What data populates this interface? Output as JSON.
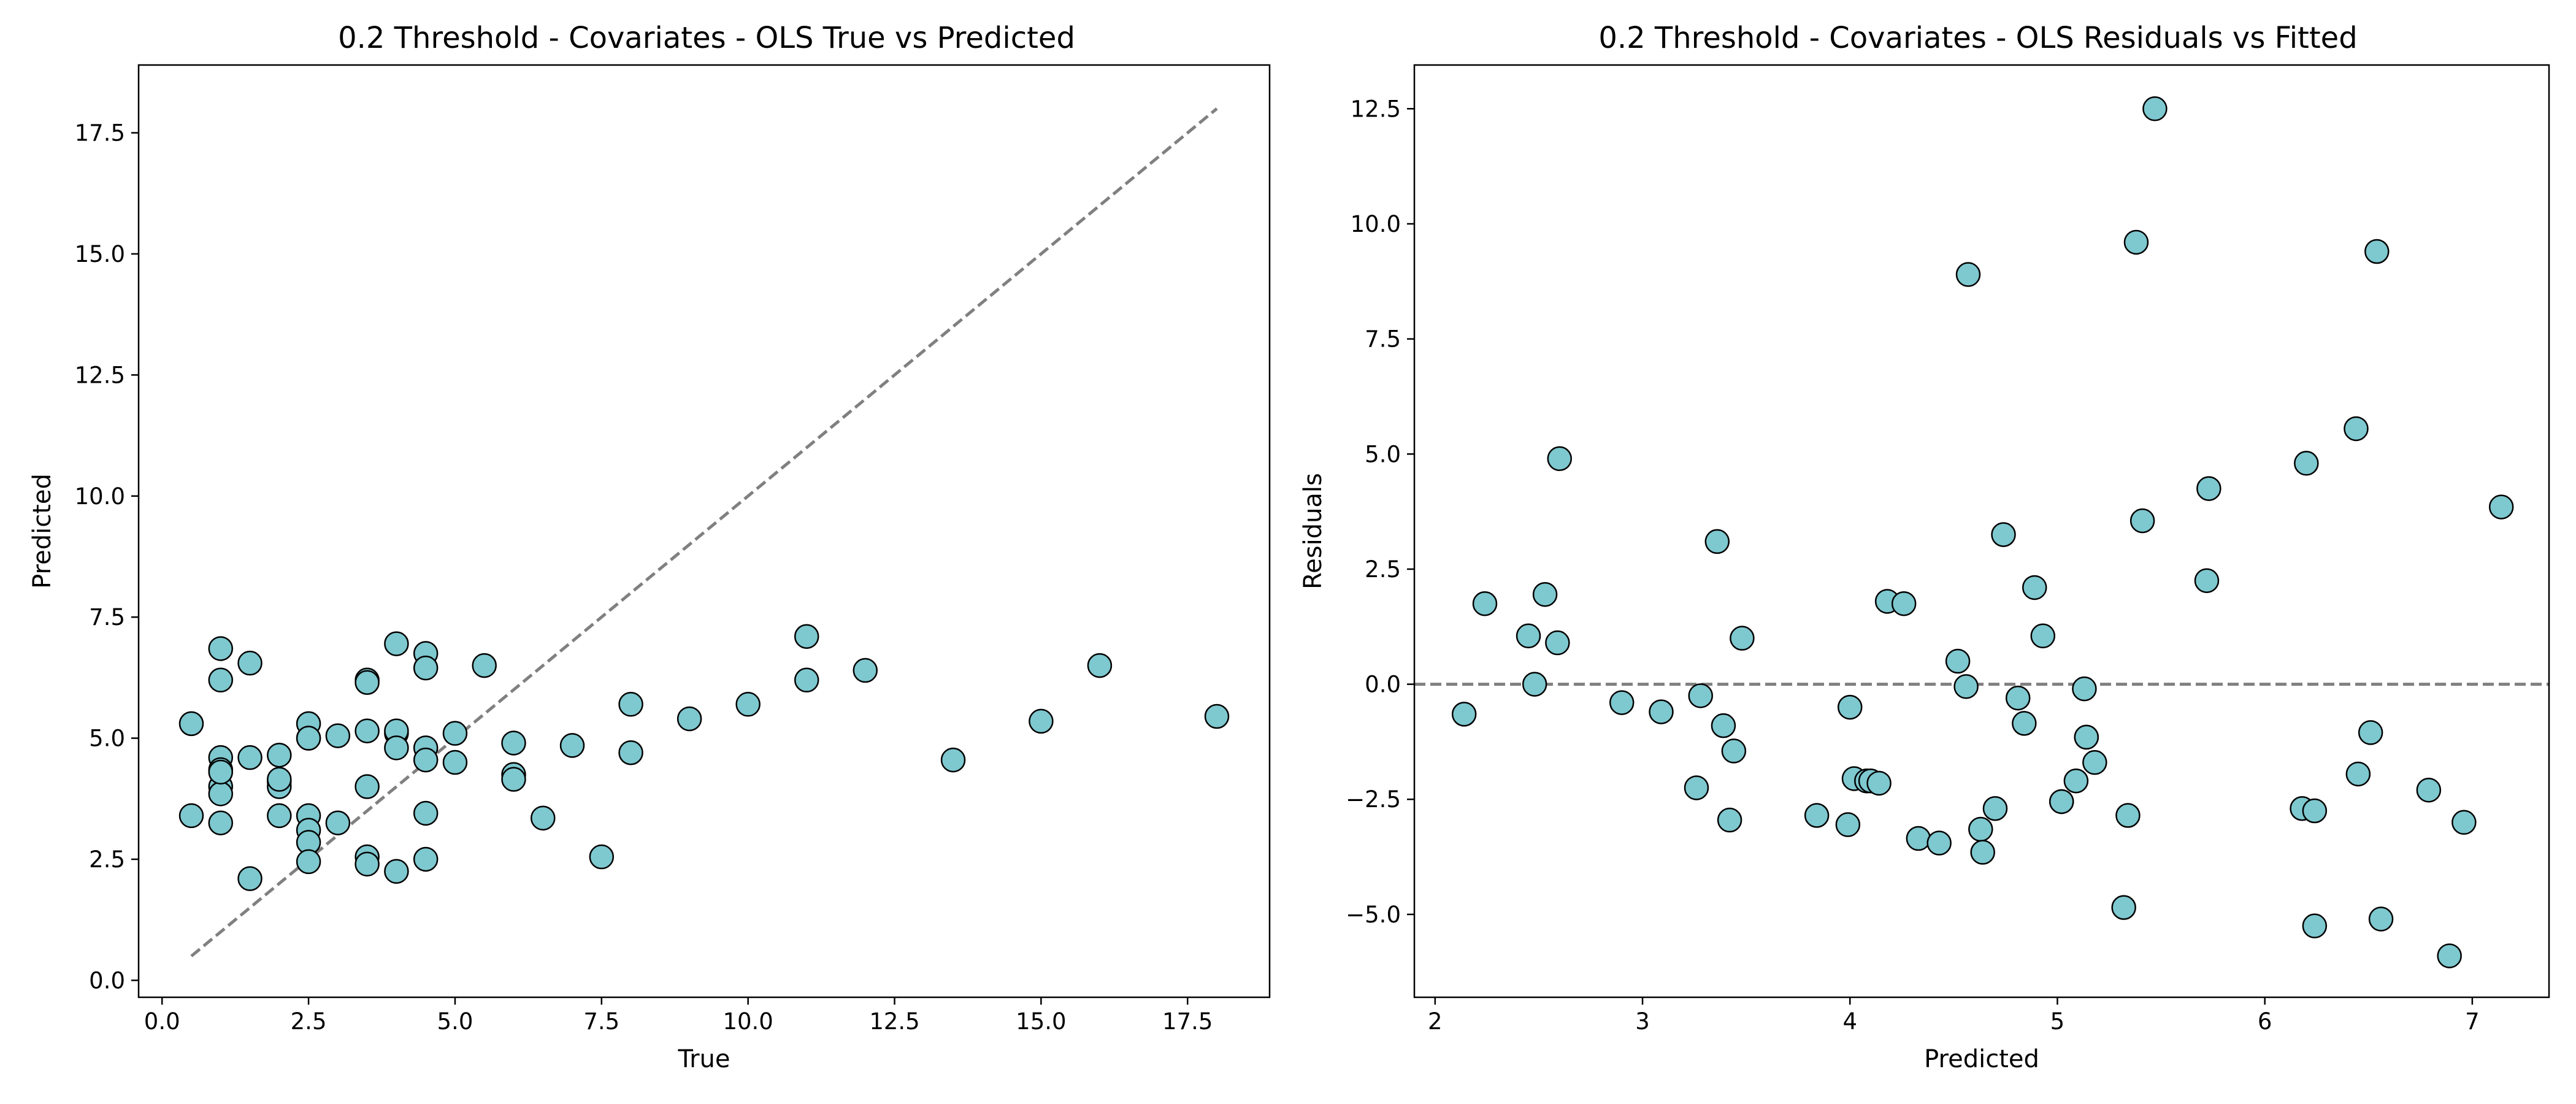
{
  "chart_data": [
    {
      "type": "scatter",
      "title": "0.2 Threshold - Covariates - OLS True vs Predicted",
      "xlabel": "True",
      "ylabel": "Predicted",
      "xlim": [
        -0.4,
        18.9
      ],
      "ylim": [
        -0.35,
        18.9
      ],
      "xticks": [
        "0.0",
        "2.5",
        "5.0",
        "7.5",
        "10.0",
        "12.5",
        "15.0",
        "17.5"
      ],
      "yticks": [
        "0.0",
        "2.5",
        "5.0",
        "7.5",
        "10.0",
        "12.5",
        "15.0",
        "17.5"
      ],
      "grid": false,
      "marker_color": "#7ec8cf",
      "reference_line": {
        "style": "dashed",
        "color": "#808080",
        "x": [
          0.5,
          18.0
        ],
        "y": [
          0.5,
          18.0
        ]
      },
      "x": [
        0.5,
        0.5,
        1.0,
        1.0,
        1.0,
        1.0,
        1.0,
        1.0,
        1.0,
        1.0,
        1.5,
        1.5,
        1.5,
        2.0,
        2.0,
        2.0,
        2.0,
        2.0,
        2.5,
        2.5,
        2.5,
        2.5,
        2.5,
        2.5,
        2.5,
        3.0,
        3.0,
        3.5,
        3.5,
        3.5,
        3.5,
        3.5,
        3.5,
        4.0,
        4.0,
        4.0,
        4.0,
        4.0,
        4.5,
        4.5,
        4.5,
        4.5,
        4.5,
        4.5,
        5.0,
        5.0,
        5.5,
        6.0,
        6.0,
        6.0,
        6.5,
        7.0,
        7.5,
        8.0,
        8.0,
        9.0,
        10.0,
        11.0,
        11.0,
        12.0,
        13.5,
        15.0,
        16.0,
        18.0
      ],
      "y": [
        5.3,
        3.4,
        6.85,
        6.2,
        4.6,
        4.35,
        4.0,
        3.85,
        3.25,
        4.3,
        6.55,
        4.6,
        2.1,
        4.65,
        4.1,
        4.0,
        3.4,
        4.15,
        5.3,
        5.0,
        3.4,
        3.1,
        2.85,
        2.45,
        5.0,
        5.05,
        3.25,
        6.2,
        6.15,
        5.15,
        4.0,
        2.55,
        2.4,
        6.95,
        5.1,
        5.15,
        4.8,
        2.25,
        6.75,
        6.45,
        4.8,
        4.55,
        3.45,
        2.5,
        5.1,
        4.5,
        6.5,
        4.9,
        4.25,
        4.15,
        3.35,
        4.85,
        2.55,
        5.7,
        4.7,
        5.4,
        5.7,
        7.1,
        6.2,
        6.4,
        4.55,
        5.35,
        6.5,
        5.45
      ]
    },
    {
      "type": "scatter",
      "title": "0.2 Threshold - Covariates - OLS Residuals vs Fitted",
      "xlabel": "Predicted",
      "ylabel": "Residuals",
      "xlim": [
        1.9,
        7.37
      ],
      "ylim": [
        -6.8,
        13.45
      ],
      "xticks": [
        "2",
        "3",
        "4",
        "5",
        "6",
        "7"
      ],
      "yticks": [
        "−5.0",
        "−2.5",
        "0.0",
        "2.5",
        "5.0",
        "7.5",
        "10.0",
        "12.5"
      ],
      "grid": false,
      "marker_color": "#7ec8cf",
      "reference_line": {
        "style": "dashed",
        "color": "#808080",
        "y": 0.0
      },
      "x": [
        2.14,
        2.24,
        2.45,
        2.48,
        2.53,
        2.59,
        2.6,
        2.9,
        3.09,
        3.26,
        3.28,
        3.36,
        3.39,
        3.42,
        3.44,
        3.48,
        3.84,
        3.99,
        4.0,
        4.02,
        4.08,
        4.1,
        4.14,
        4.18,
        4.26,
        4.33,
        4.43,
        4.52,
        4.56,
        4.57,
        4.63,
        4.64,
        4.7,
        4.74,
        4.81,
        4.84,
        4.89,
        4.93,
        5.02,
        5.02,
        5.09,
        5.13,
        5.14,
        5.14,
        5.18,
        5.32,
        5.34,
        5.38,
        5.41,
        5.47,
        5.72,
        5.73,
        6.18,
        6.2,
        6.24,
        6.24,
        6.44,
        6.45,
        6.51,
        6.54,
        6.56,
        6.79,
        6.89,
        6.96,
        7.14
      ],
      "y": [
        -0.65,
        1.75,
        1.05,
        0.0,
        1.95,
        0.9,
        4.9,
        -0.4,
        -0.6,
        -2.25,
        -0.25,
        3.1,
        -0.9,
        -2.95,
        -1.45,
        1.0,
        -2.85,
        -3.05,
        -0.5,
        -2.05,
        -2.1,
        -2.1,
        -2.15,
        1.8,
        1.75,
        -3.35,
        -3.45,
        0.5,
        -0.05,
        8.9,
        -3.15,
        -3.65,
        -2.7,
        3.25,
        -0.3,
        -0.85,
        2.1,
        1.05,
        -2.55,
        -2.55,
        -2.1,
        -0.1,
        -1.15,
        -1.15,
        -1.7,
        -4.85,
        -2.85,
        9.6,
        3.55,
        12.5,
        2.25,
        4.25,
        -2.7,
        4.8,
        -2.75,
        -5.25,
        5.55,
        -1.95,
        -1.05,
        9.4,
        -5.1,
        -2.3,
        -5.9,
        -3.0,
        3.85
      ]
    }
  ]
}
